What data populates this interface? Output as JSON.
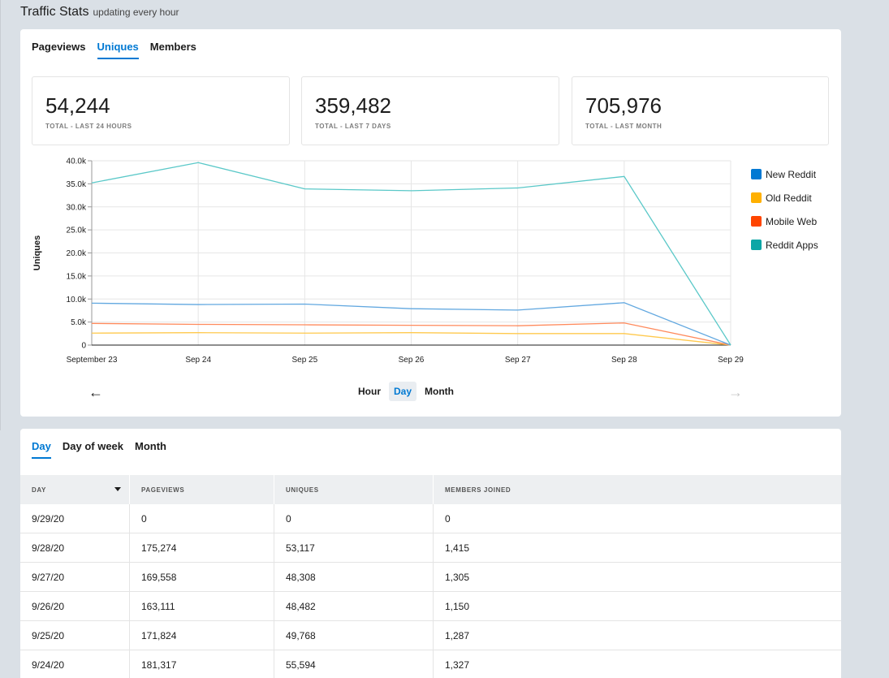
{
  "header": {
    "title": "Traffic Stats",
    "subtitle": "updating every hour"
  },
  "top_tabs": [
    {
      "label": "Pageviews",
      "active": false
    },
    {
      "label": "Uniques",
      "active": true
    },
    {
      "label": "Members",
      "active": false
    }
  ],
  "stats": [
    {
      "value": "54,244",
      "label": "TOTAL - LAST 24 HOURS"
    },
    {
      "value": "359,482",
      "label": "TOTAL - LAST 7 DAYS"
    },
    {
      "value": "705,976",
      "label": "TOTAL - LAST MONTH"
    }
  ],
  "chart_data": {
    "type": "line",
    "title": "",
    "xlabel": "",
    "ylabel": "Uniques",
    "categories": [
      "September 23",
      "Sep 24",
      "Sep 25",
      "Sep 26",
      "Sep 27",
      "Sep 28",
      "Sep 29"
    ],
    "ylim": [
      0,
      40000
    ],
    "yticks": [
      "0",
      "5.0k",
      "10.0k",
      "15.0k",
      "20.0k",
      "25.0k",
      "30.0k",
      "35.0k",
      "40.0k"
    ],
    "grid": true,
    "legend_position": "right",
    "series": [
      {
        "name": "New Reddit",
        "color": "#0079d3",
        "line_color": "#62a8e0",
        "values": [
          9100,
          8800,
          8900,
          7900,
          7600,
          9200,
          0
        ]
      },
      {
        "name": "Old Reddit",
        "color": "#ffb000",
        "line_color": "#ffc94d",
        "values": [
          2600,
          2700,
          2600,
          2700,
          2500,
          2500,
          0
        ]
      },
      {
        "name": "Mobile Web",
        "color": "#ff4500",
        "line_color": "#ff8a5c",
        "values": [
          4700,
          4500,
          4400,
          4300,
          4200,
          4800,
          0
        ]
      },
      {
        "name": "Reddit Apps",
        "color": "#0da6a6",
        "line_color": "#5ac8c8",
        "values": [
          35200,
          39600,
          33900,
          33500,
          34100,
          36600,
          0
        ]
      }
    ]
  },
  "nav": {
    "prev_icon": "←",
    "next_icon": "→"
  },
  "granularity": [
    {
      "label": "Hour",
      "active": false
    },
    {
      "label": "Day",
      "active": true
    },
    {
      "label": "Month",
      "active": false
    }
  ],
  "bottom_tabs": [
    {
      "label": "Day",
      "active": true
    },
    {
      "label": "Day of week",
      "active": false
    },
    {
      "label": "Month",
      "active": false
    }
  ],
  "table": {
    "headers": [
      "DAY",
      "PAGEVIEWS",
      "UNIQUES",
      "MEMBERS JOINED"
    ],
    "rows": [
      [
        "9/29/20",
        "0",
        "0",
        "0"
      ],
      [
        "9/28/20",
        "175,274",
        "53,117",
        "1,415"
      ],
      [
        "9/27/20",
        "169,558",
        "48,308",
        "1,305"
      ],
      [
        "9/26/20",
        "163,111",
        "48,482",
        "1,150"
      ],
      [
        "9/25/20",
        "171,824",
        "49,768",
        "1,287"
      ],
      [
        "9/24/20",
        "181,317",
        "55,594",
        "1,327"
      ]
    ]
  }
}
